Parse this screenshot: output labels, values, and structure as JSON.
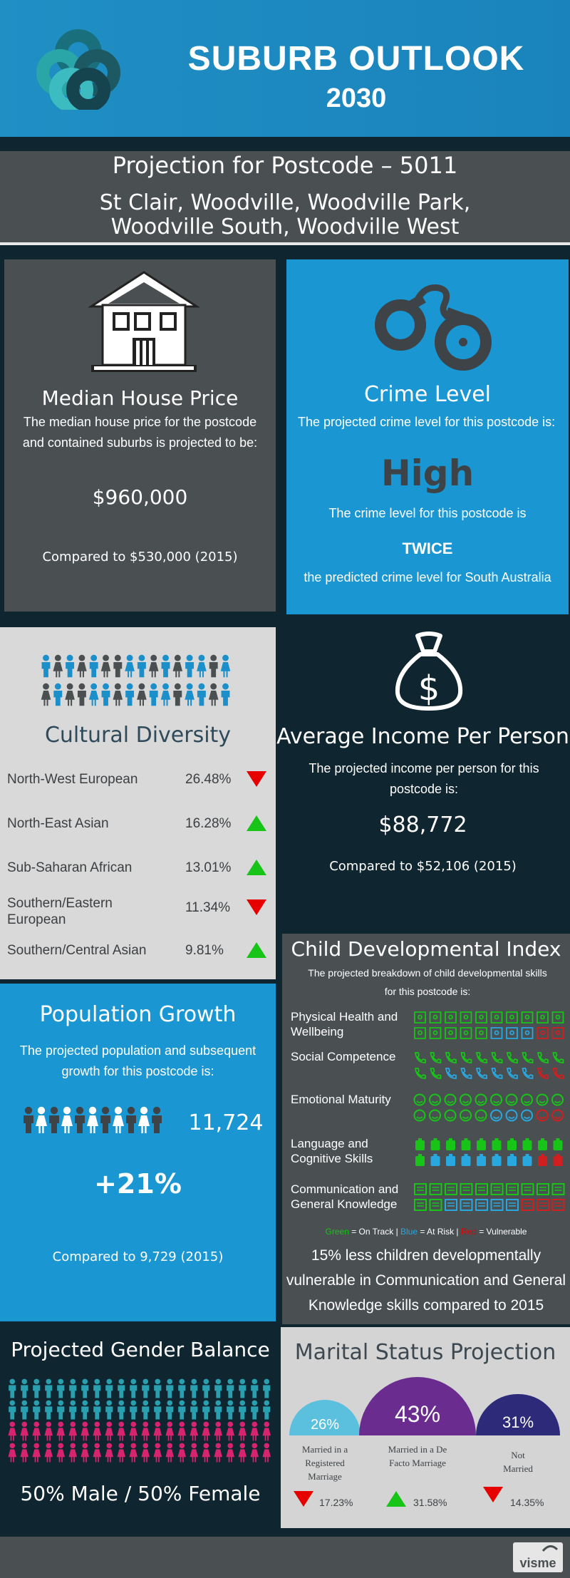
{
  "header": {
    "title": "SUBURB OUTLOOK",
    "year": "2030"
  },
  "projection": {
    "title": "Projection for Postcode – 5011",
    "suburbs": "St Clair, Woodville, Woodville Park, Woodville South, Woodville West"
  },
  "house": {
    "title": "Median House Price",
    "description": "The median house price for the postcode and contained suburbs is projected to be:",
    "price": "$960,000",
    "comparison": "Compared to $530,000 (2015)"
  },
  "crime": {
    "title": "Crime Level",
    "description": "The projected crime level for this postcode is:",
    "level": "High",
    "line2": "The crime level for this postcode is",
    "emphasis": "TWICE",
    "line3": "the predicted crime level for South Australia"
  },
  "diversity": {
    "title": "Cultural Diversity",
    "rows": [
      {
        "name": "North-West European",
        "pct": "26.48%",
        "trend": "down"
      },
      {
        "name": "North-East Asian",
        "pct": "16.28%",
        "trend": "up"
      },
      {
        "name": "Sub-Saharan African",
        "pct": "13.01%",
        "trend": "up"
      },
      {
        "name": "Southern/Eastern European",
        "pct": "11.34%",
        "trend": "down"
      },
      {
        "name": "Southern/Central Asian",
        "pct": "9.81%",
        "trend": "up"
      }
    ]
  },
  "income": {
    "title": "Average Income Per Person",
    "description": "The projected income per person for this postcode is:",
    "value": "$88,772",
    "comparison": "Compared to $52,106 (2015)"
  },
  "population": {
    "title": "Population Growth",
    "description": "The projected population and subsequent growth for this postcode is:",
    "count": "11,724",
    "growth": "+21%",
    "comparison": "Compared to 9,729 (2015)"
  },
  "child": {
    "title": "Child Developmental Index",
    "description": "The projected breakdown of child developmental skills for this postcode is:",
    "categories": [
      {
        "label": "Physical Health and Wellbeing",
        "on_track": 15,
        "at_risk": 3,
        "vulnerable": 2
      },
      {
        "label": "Social Competence",
        "on_track": 12,
        "at_risk": 6,
        "vulnerable": 2
      },
      {
        "label": "Emotional Maturity",
        "on_track": 15,
        "at_risk": 3,
        "vulnerable": 2
      },
      {
        "label": "Language and Cognitive Skills",
        "on_track": 11,
        "at_risk": 7,
        "vulnerable": 2
      },
      {
        "label": "Communication and General Knowledge",
        "on_track": 12,
        "at_risk": 5,
        "vulnerable": 3
      }
    ],
    "legend": {
      "green": "Green",
      "on_track": " = On Track | ",
      "blue": "Blue",
      "at_risk": " = At Risk | ",
      "red": "Red",
      "vulnerable": " = Vulnerable"
    },
    "note": "15% less children developmentally vulnerable in Communication and General Knowledge skills compared to 2015"
  },
  "gender": {
    "title": "Projected Gender Balance",
    "text": "50% Male / 50% Female"
  },
  "marital": {
    "title": "Marital Status Projection",
    "items": [
      {
        "pct": "26%",
        "label": "Married in a Registered Marriage",
        "change": "17.23%",
        "trend": "down",
        "color": "#5bc0de"
      },
      {
        "pct": "43%",
        "label": "Married in a De Facto Marriage",
        "change": "31.58%",
        "trend": "up",
        "color": "#6a2c8f"
      },
      {
        "pct": "31%",
        "label": "Not Married",
        "change": "14.35%",
        "trend": "down",
        "color": "#2e2a7a"
      }
    ]
  },
  "footer": {
    "brand": "visme"
  },
  "colors": {
    "blue": "#1a97d2",
    "grey": "#4a4f52",
    "navy": "#0f2530",
    "green": "#17c417",
    "red": "#e60000",
    "pink": "#d6246e",
    "teal": "#2a9fb0"
  }
}
